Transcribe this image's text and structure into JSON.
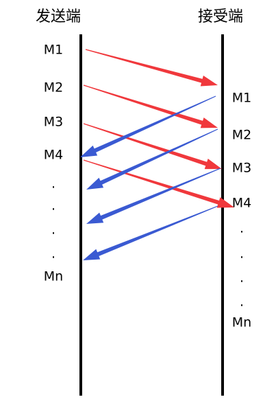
{
  "sender": {
    "title": "发送端",
    "labels": [
      "M1",
      "M2",
      "M3",
      "M4",
      ".",
      ".",
      ".",
      ".",
      "Mn"
    ]
  },
  "receiver": {
    "title": "接受端",
    "labels": [
      "M1",
      "M2",
      "M3",
      "M4",
      ".",
      ".",
      ".",
      ".",
      "Mn"
    ]
  }
}
